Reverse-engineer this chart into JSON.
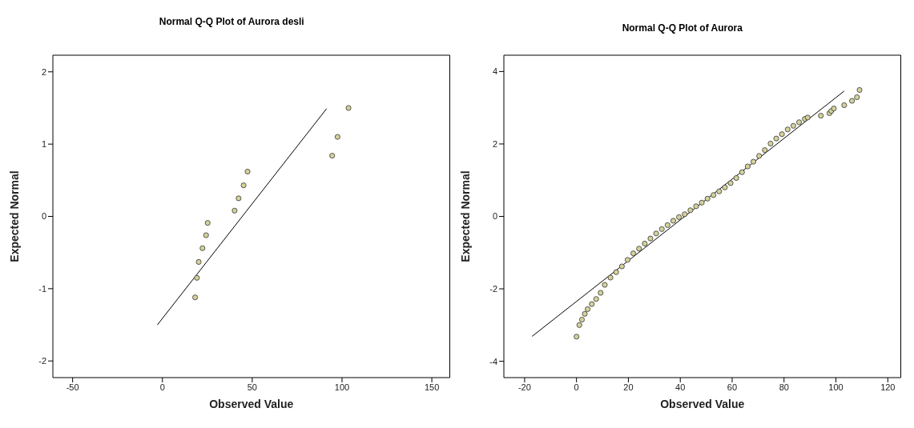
{
  "chart_data": [
    {
      "type": "scatter",
      "title": "Normal Q-Q Plot of Aurora desli",
      "xlabel": "Observed Value",
      "ylabel": "Expected Normal",
      "xlim": [
        -61,
        160
      ],
      "xticks": [
        -50,
        0,
        50,
        100,
        150
      ],
      "ylim": [
        -2.23,
        2.23
      ],
      "yticks": [
        -2,
        -1,
        0,
        1,
        2
      ],
      "grid": false,
      "legend": false,
      "series": [
        {
          "marker": "circle",
          "color": "#d4d29c",
          "x": [
            18.2,
            19.2,
            20.2,
            22.3,
            24.3,
            25.2,
            40.2,
            42.4,
            45.2,
            47.4,
            94.5,
            97.5,
            103.6
          ],
          "values": [
            -1.12,
            -0.85,
            -0.63,
            -0.44,
            -0.26,
            -0.09,
            0.08,
            0.25,
            0.43,
            0.62,
            0.84,
            1.1,
            1.5
          ]
        },
        {
          "type": "line",
          "color": "#000000",
          "x": [
            -2.8,
            91.4
          ],
          "values": [
            -1.5,
            1.49
          ]
        }
      ]
    },
    {
      "type": "scatter",
      "title": "Normal Q-Q Plot of Aurora",
      "xlabel": "Observed Value",
      "ylabel": "Expected Normal",
      "xlim": [
        -28,
        125
      ],
      "xticks": [
        -20,
        0,
        20,
        40,
        60,
        80,
        100,
        120
      ],
      "ylim": [
        -4.45,
        4.45
      ],
      "yticks": [
        -4,
        -2,
        0,
        2,
        4
      ],
      "grid": false,
      "legend": false,
      "series": [
        {
          "marker": "circle",
          "color": "#d4d29c",
          "x": [
            0,
            1.1,
            2.1,
            3.2,
            4.3,
            5.9,
            7.6,
            9.3,
            10.9,
            13.1,
            15.3,
            17.5,
            19.7,
            21.9,
            24.1,
            26.3,
            28.5,
            30.7,
            32.9,
            35.1,
            37.3,
            39.5,
            41.7,
            43.9,
            46.1,
            48.3,
            50.5,
            52.8,
            55,
            57.2,
            59.4,
            61.6,
            63.8,
            66,
            68.2,
            70.4,
            72.6,
            74.8,
            77,
            79.2,
            81.4,
            83.6,
            85.8,
            88,
            89.1,
            94.2,
            97.5,
            98.2,
            99.2,
            103.2,
            106.2,
            108.1,
            109.1
          ],
          "values": [
            -3.32,
            -3,
            -2.85,
            -2.69,
            -2.56,
            -2.42,
            -2.28,
            -2.11,
            -1.89,
            -1.69,
            -1.54,
            -1.38,
            -1.2,
            -1.02,
            -0.89,
            -0.75,
            -0.61,
            -0.47,
            -0.35,
            -0.24,
            -0.12,
            -0.02,
            0.06,
            0.17,
            0.28,
            0.38,
            0.49,
            0.59,
            0.69,
            0.8,
            0.92,
            1.06,
            1.22,
            1.38,
            1.51,
            1.67,
            1.83,
            2.01,
            2.15,
            2.27,
            2.4,
            2.5,
            2.6,
            2.69,
            2.73,
            2.78,
            2.85,
            2.91,
            2.98,
            3.07,
            3.19,
            3.29,
            3.49
          ]
        },
        {
          "type": "line",
          "color": "#000000",
          "x": [
            -17.1,
            103.2
          ],
          "values": [
            -3.31,
            3.46
          ]
        }
      ]
    }
  ]
}
